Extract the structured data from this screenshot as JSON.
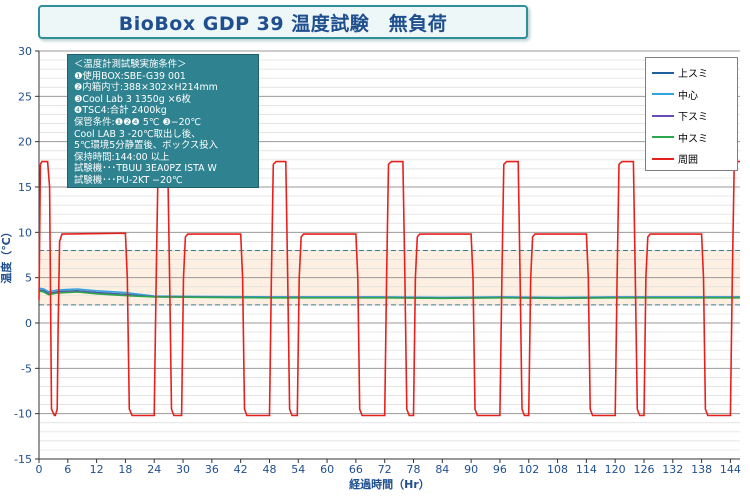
{
  "chart_data": {
    "type": "line",
    "title": "BioBox GDP 39 温度試験　無負荷",
    "xlabel": "経過時間（Hr）",
    "ylabel": "温度（℃）",
    "xlim": [
      0,
      146
    ],
    "ylim": [
      -15,
      30
    ],
    "x_ticks": [
      "0",
      "6",
      "12",
      "18",
      "24",
      "30",
      "36",
      "42",
      "48",
      "54",
      "60",
      "66",
      "72",
      "78",
      "84",
      "90",
      "96",
      "102",
      "108",
      "114",
      "120",
      "126",
      "132",
      "138",
      "144"
    ],
    "y_ticks": [
      "-15",
      "-10",
      "-5",
      "0",
      "5",
      "10",
      "15",
      "20",
      "25",
      "30"
    ],
    "grid": true,
    "legend_position": "top-right",
    "reference_band": {
      "lower": 2,
      "upper": 8
    },
    "info_lines": [
      "＜温度計測試験実施条件＞",
      "❶使用BOX:SBE-G39 001",
      "❷内箱内寸:388×302×H214mm",
      "❸Cool Lab 3 1350g ×6枚",
      "❹TSC4:合計 2400kg",
      "保管条件:❶❷❹  5℃  ❸−20℃",
      "Cool LAB 3 -20℃取出し後、",
      "5℃環境5分静置後、ボックス投入",
      "保持時間:144:00 以上",
      "試験機･･･TBUU 3EA0PZ  ISTA W",
      "試験機･･･PU-2KT  −20℃"
    ],
    "series": [
      {
        "name": "上スミ",
        "color": "#1f5f9f"
      },
      {
        "name": "中心",
        "color": "#35a3dd"
      },
      {
        "name": "下スミ",
        "color": "#6a4cb8"
      },
      {
        "name": "中スミ",
        "color": "#2aa84a"
      },
      {
        "name": "周囲",
        "color": "#e8201c"
      }
    ],
    "ambient_profile": [
      [
        0,
        2.5
      ],
      [
        0.3,
        17.5
      ],
      [
        0.6,
        17.8
      ],
      [
        1.8,
        17.8
      ],
      [
        2.2,
        15
      ],
      [
        2.6,
        -9.5
      ],
      [
        3.2,
        -10.2
      ],
      [
        3.4,
        -10.2
      ],
      [
        3.8,
        -9.5
      ],
      [
        4.0,
        0
      ],
      [
        4.3,
        9
      ],
      [
        4.8,
        9.8
      ],
      [
        18,
        9.9
      ],
      [
        18.4,
        5
      ],
      [
        18.8,
        -9.5
      ],
      [
        19.4,
        -10.2
      ],
      [
        24,
        -10.2
      ],
      [
        24.4,
        5
      ],
      [
        24.8,
        17.5
      ],
      [
        25.4,
        17.8
      ],
      [
        26.8,
        17.8
      ],
      [
        27.2,
        5
      ],
      [
        27.6,
        -9.5
      ],
      [
        28.1,
        -10.2
      ],
      [
        29.7,
        -10.2
      ],
      [
        30.1,
        5
      ],
      [
        30.5,
        9.5
      ],
      [
        31,
        9.8
      ],
      [
        42,
        9.8
      ],
      [
        42.4,
        5
      ],
      [
        42.8,
        -9.5
      ],
      [
        43.3,
        -10.2
      ],
      [
        48,
        -10.2
      ],
      [
        48.4,
        5
      ],
      [
        48.8,
        17.5
      ],
      [
        49.4,
        17.8
      ],
      [
        51.4,
        17.8
      ],
      [
        51.8,
        5
      ],
      [
        52.2,
        -9.5
      ],
      [
        52.7,
        -10.2
      ],
      [
        53.8,
        -10.2
      ],
      [
        54.2,
        5
      ],
      [
        54.6,
        9.5
      ],
      [
        55.1,
        9.8
      ],
      [
        66,
        9.8
      ],
      [
        66.4,
        5
      ],
      [
        66.8,
        -9.5
      ],
      [
        67.3,
        -10.2
      ],
      [
        72,
        -10.2
      ],
      [
        72.4,
        5
      ],
      [
        72.8,
        17.5
      ],
      [
        73.4,
        17.8
      ],
      [
        75.8,
        17.8
      ],
      [
        76.2,
        5
      ],
      [
        76.6,
        -9.5
      ],
      [
        77.1,
        -10.2
      ],
      [
        78,
        -10.2
      ],
      [
        78.4,
        5
      ],
      [
        78.8,
        9.5
      ],
      [
        79.3,
        9.8
      ],
      [
        90,
        9.8
      ],
      [
        90.4,
        5
      ],
      [
        90.8,
        -9.5
      ],
      [
        91.3,
        -10.2
      ],
      [
        96,
        -10.2
      ],
      [
        96.4,
        5
      ],
      [
        96.8,
        17.5
      ],
      [
        97.4,
        17.8
      ],
      [
        99.8,
        17.8
      ],
      [
        100.2,
        5
      ],
      [
        100.6,
        -9.5
      ],
      [
        101.1,
        -10.2
      ],
      [
        102,
        -10.2
      ],
      [
        102.4,
        5
      ],
      [
        102.8,
        9.5
      ],
      [
        103.3,
        9.8
      ],
      [
        114,
        9.8
      ],
      [
        114.4,
        5
      ],
      [
        114.8,
        -9.5
      ],
      [
        115.3,
        -10.2
      ],
      [
        120,
        -10.2
      ],
      [
        120.4,
        5
      ],
      [
        120.8,
        17.5
      ],
      [
        121.4,
        17.8
      ],
      [
        123.8,
        17.8
      ],
      [
        124.2,
        5
      ],
      [
        124.6,
        -9.5
      ],
      [
        125.1,
        -10.2
      ],
      [
        126,
        -10.2
      ],
      [
        126.4,
        5
      ],
      [
        126.8,
        9.5
      ],
      [
        127.3,
        9.8
      ],
      [
        138,
        9.8
      ],
      [
        138.4,
        5
      ],
      [
        138.8,
        -9.5
      ],
      [
        139.3,
        -10.2
      ],
      [
        144,
        -10.2
      ],
      [
        144.4,
        5
      ],
      [
        144.8,
        17.5
      ],
      [
        145.4,
        17.8
      ],
      [
        146,
        17.8
      ]
    ],
    "inner_profile": [
      [
        0,
        3.6
      ],
      [
        1,
        3.5
      ],
      [
        2,
        3.2
      ],
      [
        4,
        3.4
      ],
      [
        8,
        3.5
      ],
      [
        12,
        3.3
      ],
      [
        18,
        3.1
      ],
      [
        24,
        2.9
      ],
      [
        36,
        2.85
      ],
      [
        48,
        2.8
      ],
      [
        60,
        2.8
      ],
      [
        72,
        2.8
      ],
      [
        84,
        2.75
      ],
      [
        96,
        2.8
      ],
      [
        108,
        2.75
      ],
      [
        120,
        2.8
      ],
      [
        132,
        2.8
      ],
      [
        146,
        2.8
      ]
    ]
  }
}
